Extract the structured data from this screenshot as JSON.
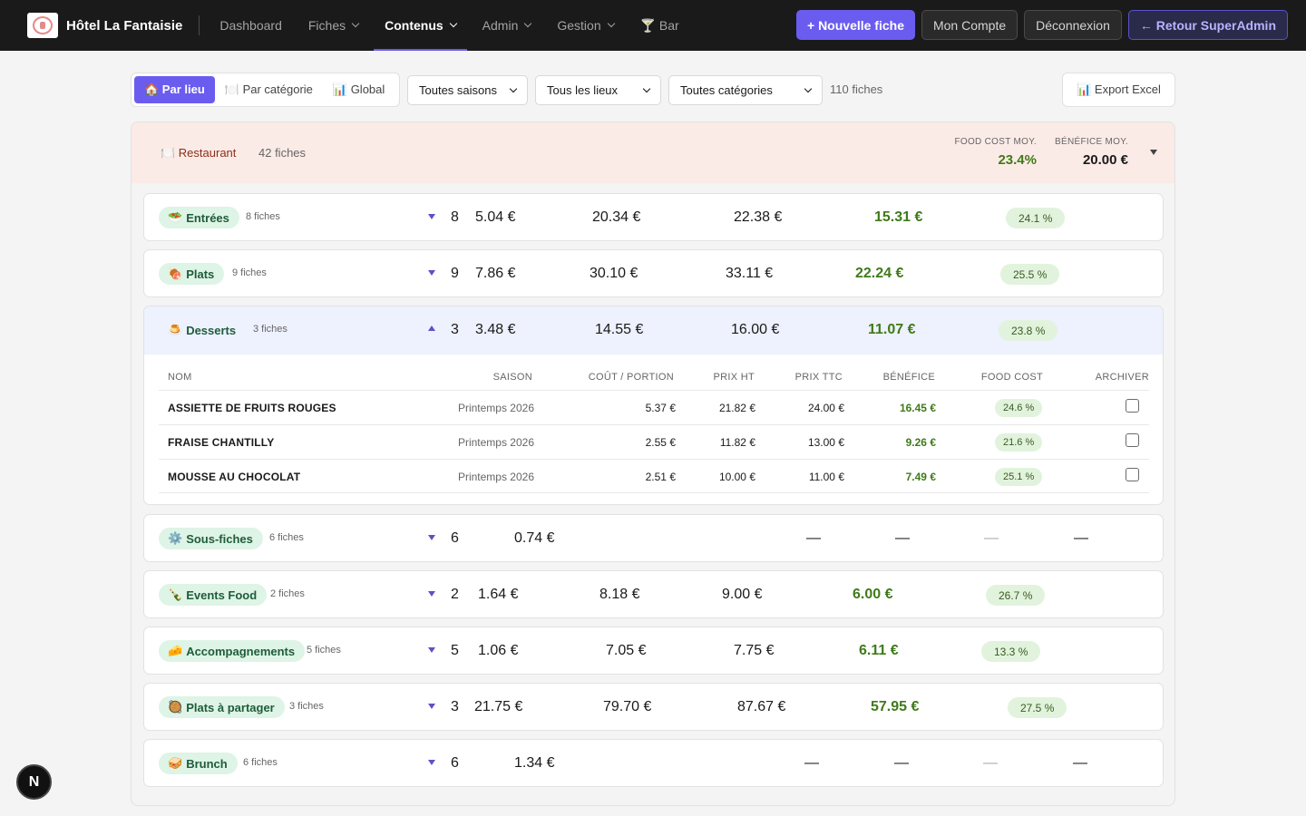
{
  "navbar": {
    "brand": "Hôtel La Fantaisie",
    "items": [
      {
        "label": "Dashboard"
      },
      {
        "label": "Fiches"
      },
      {
        "label": "Contenus"
      },
      {
        "label": "Admin"
      },
      {
        "label": "Gestion"
      },
      {
        "label": "🍸 Bar"
      }
    ],
    "new_button": "+ Nouvelle fiche",
    "account_button": "Mon Compte",
    "logout_button": "Déconnexion",
    "superadmin_button": "← Retour SuperAdmin"
  },
  "toolbar": {
    "view_tabs": [
      {
        "label": "🏠 Par lieu"
      },
      {
        "label": "🍽️ Par catégorie"
      },
      {
        "label": "📊 Global"
      }
    ],
    "season_filter": "Toutes saisons",
    "place_filter": "Tous les lieux",
    "category_filter": "Toutes catégories",
    "total_count": "110 fiches",
    "export_button": "📊 Export Excel"
  },
  "restaurant": {
    "title": "🍽️ Restaurant",
    "count": "42 fiches",
    "food_cost_label": "FOOD COST MOY.",
    "food_cost_value": "23.4%",
    "benefit_label": "BÉNÉFICE MOY.",
    "benefit_value": "20.00 €"
  },
  "categories": [
    {
      "emoji": "🥗",
      "name": "Entrées",
      "count": "8 fiches",
      "n": "8",
      "cost": "5.04 €",
      "ht": "20.34 €",
      "ttc": "22.38 €",
      "benefit": "15.31 €",
      "fc": "24.1 %"
    },
    {
      "emoji": "🍖",
      "name": "Plats",
      "count": "9 fiches",
      "n": "9",
      "cost": "7.86 €",
      "ht": "30.10 €",
      "ttc": "33.11 €",
      "benefit": "22.24 €",
      "fc": "25.5 %"
    },
    {
      "emoji": "🍮",
      "name": "Desserts",
      "count": "3 fiches",
      "n": "3",
      "cost": "3.48 €",
      "ht": "14.55 €",
      "ttc": "16.00 €",
      "benefit": "11.07 €",
      "fc": "23.8 %"
    },
    {
      "emoji": "⚙️",
      "name": "Sous-fiches",
      "count": "6 fiches",
      "n": "6",
      "cost": "0.74 €",
      "ht": "—",
      "ttc": "—",
      "benefit": "—",
      "fc": "—"
    },
    {
      "emoji": "🍾",
      "name": "Events Food",
      "count": "2 fiches",
      "n": "2",
      "cost": "1.64 €",
      "ht": "8.18 €",
      "ttc": "9.00 €",
      "benefit": "6.00 €",
      "fc": "26.7 %"
    },
    {
      "emoji": "🧀",
      "name": "Accompagnements",
      "count": "5 fiches",
      "n": "5",
      "cost": "1.06 €",
      "ht": "7.05 €",
      "ttc": "7.75 €",
      "benefit": "6.11 €",
      "fc": "13.3 %"
    },
    {
      "emoji": "🥘",
      "name": "Plats à partager",
      "count": "3 fiches",
      "n": "3",
      "cost": "21.75 €",
      "ht": "79.70 €",
      "ttc": "87.67 €",
      "benefit": "57.95 €",
      "fc": "27.5 %"
    },
    {
      "emoji": "🥪",
      "name": "Brunch",
      "count": "6 fiches",
      "n": "6",
      "cost": "1.34 €",
      "ht": "—",
      "ttc": "—",
      "benefit": "—",
      "fc": "—"
    }
  ],
  "desserts_table": {
    "headers": [
      "NOM",
      "SAISON",
      "COÛT / PORTION",
      "PRIX HT",
      "PRIX TTC",
      "BÉNÉFICE",
      "FOOD COST",
      "ARCHIVER"
    ],
    "rows": [
      {
        "name": "ASSIETTE DE FRUITS ROUGES",
        "season": "Printemps 2026",
        "cost": "5.37 €",
        "ht": "21.82 €",
        "ttc": "24.00 €",
        "benefit": "16.45 €",
        "fc": "24.6 %"
      },
      {
        "name": "FRAISE CHANTILLY",
        "season": "Printemps 2026",
        "cost": "2.55 €",
        "ht": "11.82 €",
        "ttc": "13.00 €",
        "benefit": "9.26 €",
        "fc": "21.6 %"
      },
      {
        "name": "MOUSSE AU CHOCOLAT",
        "season": "Printemps 2026",
        "cost": "2.51 €",
        "ht": "10.00 €",
        "ttc": "11.00 €",
        "benefit": "7.49 €",
        "fc": "25.1 %"
      }
    ]
  },
  "dev_badge": "N"
}
